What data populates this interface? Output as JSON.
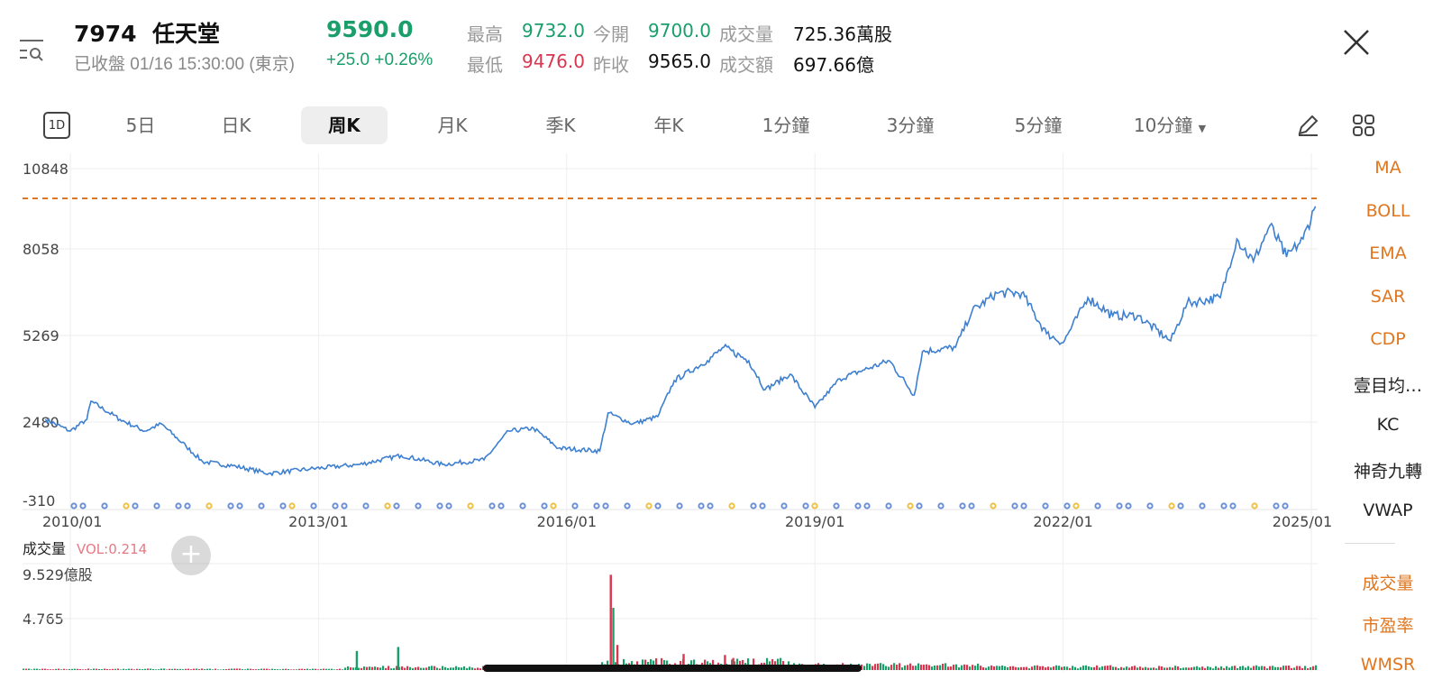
{
  "header": {
    "symbol": "7974",
    "name": "任天堂",
    "status": "已收盤 01/16 15:30:00 (東京)",
    "price": "9590.0",
    "change": "+25.0",
    "change_pct": "+0.26%",
    "stats": [
      {
        "label": "最高",
        "value": "9732.0",
        "color": "#1a9e6a"
      },
      {
        "label": "今開",
        "value": "9700.0",
        "color": "#1a9e6a"
      },
      {
        "label": "成交量",
        "value": "725.36萬股",
        "color": "#111"
      },
      {
        "label": "最低",
        "value": "9476.0",
        "color": "#d9364f"
      },
      {
        "label": "昨收",
        "value": "9565.0",
        "color": "#111"
      },
      {
        "label": "成交額",
        "value": "697.66億",
        "color": "#111"
      }
    ]
  },
  "tabs": [
    {
      "label": "1D"
    },
    {
      "label": "5日"
    },
    {
      "label": "日K"
    },
    {
      "label": "周K",
      "active": true
    },
    {
      "label": "月K"
    },
    {
      "label": "季K"
    },
    {
      "label": "年K"
    },
    {
      "label": "1分鐘"
    },
    {
      "label": "3分鐘"
    },
    {
      "label": "5分鐘"
    },
    {
      "label": "10分鐘"
    }
  ],
  "indicators_main": [
    "MA",
    "BOLL",
    "EMA",
    "SAR",
    "CDP",
    "壹目均…",
    "KC",
    "神奇九轉",
    "VWAP"
  ],
  "indicators_sub": [
    "成交量",
    "市盈率",
    "WMSR"
  ],
  "colors": {
    "line": "#3d7fd0",
    "up": "#1a9e6a",
    "down": "#d9364f",
    "accent": "#e0761f"
  },
  "chart_data": {
    "type": "line",
    "y_ticks": [
      "10848",
      "8058",
      "5269",
      "2480",
      "-310"
    ],
    "ylim": [
      -310,
      10848
    ],
    "x_ticks": [
      "2010/01",
      "2013/01",
      "2016/01",
      "2019/01",
      "2022/01",
      "2025/01"
    ],
    "xlim": [
      2009.7,
      2025.1
    ],
    "reference_line": 9732,
    "series": [
      {
        "points": [
          [
            2009.7,
            2486
          ],
          [
            2010.0,
            2096
          ],
          [
            2010.2,
            2486
          ],
          [
            2010.25,
            3088
          ],
          [
            2010.6,
            2486
          ],
          [
            2010.9,
            2096
          ],
          [
            2011.1,
            2337
          ],
          [
            2011.4,
            1585
          ],
          [
            2011.6,
            1073
          ],
          [
            2012.0,
            923
          ],
          [
            2012.4,
            682
          ],
          [
            2012.9,
            833
          ],
          [
            2013.5,
            983
          ],
          [
            2014.0,
            1284
          ],
          [
            2014.5,
            983
          ],
          [
            2015.0,
            1134
          ],
          [
            2015.3,
            2096
          ],
          [
            2015.6,
            2186
          ],
          [
            2015.9,
            1525
          ],
          [
            2016.4,
            1434
          ],
          [
            2016.5,
            2698
          ],
          [
            2016.8,
            2337
          ],
          [
            2017.1,
            2577
          ],
          [
            2017.3,
            3780
          ],
          [
            2017.7,
            4442
          ],
          [
            2017.9,
            4893
          ],
          [
            2018.2,
            4442
          ],
          [
            2018.4,
            3480
          ],
          [
            2018.7,
            3991
          ],
          [
            2019.0,
            2878
          ],
          [
            2019.3,
            3840
          ],
          [
            2019.6,
            4141
          ],
          [
            2019.9,
            4442
          ],
          [
            2020.2,
            3299
          ],
          [
            2020.3,
            4743
          ],
          [
            2020.7,
            4893
          ],
          [
            2020.9,
            6096
          ],
          [
            2021.2,
            6697
          ],
          [
            2021.5,
            6697
          ],
          [
            2021.8,
            5344
          ],
          [
            2022.0,
            5043
          ],
          [
            2022.3,
            6547
          ],
          [
            2022.6,
            5945
          ],
          [
            2022.9,
            5945
          ],
          [
            2023.3,
            5103
          ],
          [
            2023.5,
            6366
          ],
          [
            2023.9,
            6547
          ],
          [
            2024.1,
            8502
          ],
          [
            2024.3,
            7750
          ],
          [
            2024.5,
            8953
          ],
          [
            2024.7,
            7900
          ],
          [
            2024.9,
            8502
          ],
          [
            2025.05,
            9590
          ]
        ]
      }
    ],
    "volume": {
      "title": "成交量",
      "indicator": "VOL:0.214",
      "y_ticks": [
        "9.529億股",
        "4.765"
      ],
      "ylim": [
        0,
        9.529
      ],
      "spikes": [
        [
          2013.45,
          1.9
        ],
        [
          2013.95,
          2.3
        ],
        [
          2016.52,
          9.5
        ],
        [
          2016.55,
          6.2
        ],
        [
          2016.6,
          2.5
        ],
        [
          2017.4,
          1.6
        ],
        [
          2017.9,
          1.5
        ],
        [
          2018.0,
          1.2
        ]
      ]
    }
  }
}
